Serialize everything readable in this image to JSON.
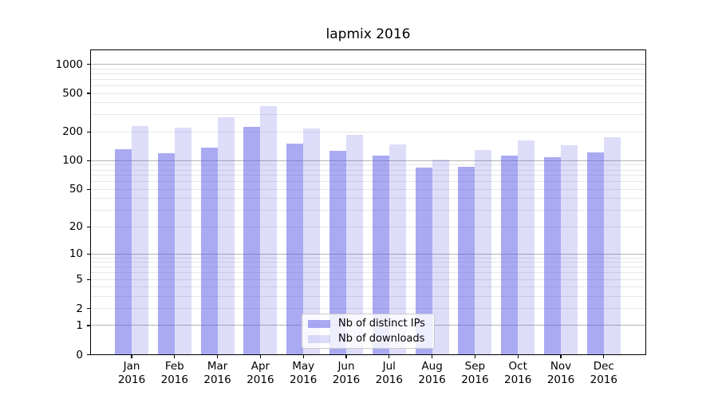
{
  "chart_data": {
    "type": "bar",
    "title": "lapmix 2016",
    "categories": [
      "Jan",
      "Feb",
      "Mar",
      "Apr",
      "May",
      "Jun",
      "Jul",
      "Aug",
      "Sep",
      "Oct",
      "Nov",
      "Dec"
    ],
    "x_tick_line2": "2016",
    "series": [
      {
        "name": "Nb of distinct IPs",
        "color": "rgba(85,85,230,0.5)",
        "values": [
          131,
          119,
          136,
          225,
          151,
          126,
          112,
          85,
          86,
          114,
          108,
          121
        ]
      },
      {
        "name": "Nb of downloads",
        "color": "rgba(85,85,230,0.2)",
        "values": [
          230,
          222,
          280,
          370,
          218,
          186,
          147,
          102,
          130,
          161,
          144,
          177
        ]
      }
    ],
    "yscale": "log1p",
    "yticks": [
      0,
      1,
      2,
      5,
      10,
      20,
      50,
      100,
      200,
      500,
      1000
    ],
    "ylim": [
      0,
      1420
    ],
    "grid": {
      "major_color": "#b4b4b4",
      "minor_color": "#e7e7e7"
    },
    "legend_position": "lower center",
    "background": "#ffffff"
  }
}
